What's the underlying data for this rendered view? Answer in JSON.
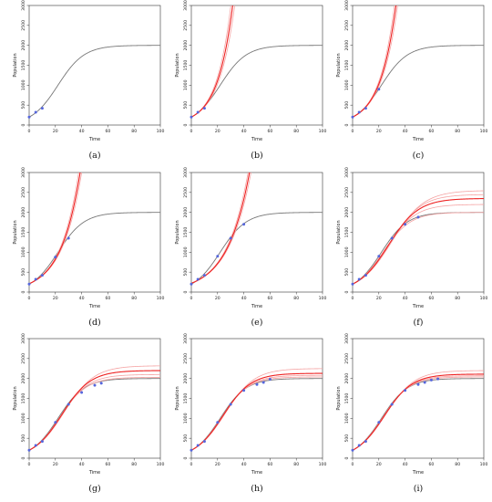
{
  "figure": {
    "captions": [
      "(a)",
      "(b)",
      "(c)",
      "(d)",
      "(e)",
      "(f)",
      "(g)",
      "(h)",
      "(i)"
    ]
  },
  "colors": {
    "true_curve": "#777777",
    "fit_curve": "#ee2222",
    "fit_band": "#f5a3a3",
    "observation": "#5566dd",
    "axis": "#333333"
  },
  "chart_data": [
    {
      "type": "line",
      "caption": "(a)",
      "xlabel": "Time",
      "ylabel": "Population",
      "xlim": [
        0,
        100
      ],
      "ylim": [
        0,
        3000
      ],
      "xticks": [
        0,
        20,
        40,
        60,
        80,
        100
      ],
      "yticks": [
        0,
        500,
        1000,
        1500,
        2000,
        2500,
        3000
      ],
      "true_curve": {
        "K": 2000,
        "P0": 200,
        "r": 0.1
      },
      "observations": {
        "x": [
          0,
          5,
          10
        ],
        "y": [
          200,
          320,
          420
        ]
      },
      "fits": []
    },
    {
      "type": "line",
      "caption": "(b)",
      "xlabel": "Time",
      "ylabel": "Population",
      "xlim": [
        0,
        100
      ],
      "ylim": [
        0,
        3000
      ],
      "xticks": [
        0,
        20,
        40,
        60,
        80,
        100
      ],
      "yticks": [
        0,
        500,
        1000,
        1500,
        2000,
        2500,
        3000
      ],
      "true_curve": {
        "K": 2000,
        "P0": 200,
        "r": 0.1
      },
      "observations": {
        "x": [
          0,
          5,
          10
        ],
        "y": [
          200,
          320,
          420
        ]
      },
      "fits": [
        {
          "role": "band",
          "K": 1000000,
          "P0": 200,
          "r": 0.082
        },
        {
          "role": "band",
          "K": 1000000,
          "P0": 200,
          "r": 0.09
        },
        {
          "role": "mean",
          "K": 1000000,
          "P0": 200,
          "r": 0.086
        }
      ]
    },
    {
      "type": "line",
      "caption": "(c)",
      "xlabel": "Time",
      "ylabel": "Population",
      "xlim": [
        0,
        100
      ],
      "ylim": [
        0,
        3000
      ],
      "xticks": [
        0,
        20,
        40,
        60,
        80,
        100
      ],
      "yticks": [
        0,
        500,
        1000,
        1500,
        2000,
        2500,
        3000
      ],
      "true_curve": {
        "K": 2000,
        "P0": 200,
        "r": 0.1
      },
      "observations": {
        "x": [
          0,
          5,
          10,
          20
        ],
        "y": [
          200,
          320,
          420,
          900
        ]
      },
      "fits": [
        {
          "role": "band",
          "K": 1000000,
          "P0": 200,
          "r": 0.079
        },
        {
          "role": "band",
          "K": 1000000,
          "P0": 200,
          "r": 0.085
        },
        {
          "role": "mean",
          "K": 1000000,
          "P0": 200,
          "r": 0.082
        }
      ]
    },
    {
      "type": "line",
      "caption": "(d)",
      "xlabel": "Time",
      "ylabel": "Population",
      "xlim": [
        0,
        100
      ],
      "ylim": [
        0,
        3000
      ],
      "xticks": [
        0,
        20,
        40,
        60,
        80,
        100
      ],
      "yticks": [
        0,
        500,
        1000,
        1500,
        2000,
        2500,
        3000
      ],
      "true_curve": {
        "K": 2000,
        "P0": 200,
        "r": 0.1
      },
      "observations": {
        "x": [
          0,
          5,
          10,
          20,
          30
        ],
        "y": [
          200,
          320,
          420,
          880,
          1350
        ]
      },
      "fits": [
        {
          "role": "band",
          "K": 1000000,
          "P0": 210,
          "r": 0.0665
        },
        {
          "role": "band",
          "K": 1000000,
          "P0": 210,
          "r": 0.0705
        },
        {
          "role": "mean",
          "K": 1000000,
          "P0": 210,
          "r": 0.0685
        }
      ]
    },
    {
      "type": "line",
      "caption": "(e)",
      "xlabel": "Time",
      "ylabel": "Population",
      "xlim": [
        0,
        100
      ],
      "ylim": [
        0,
        3000
      ],
      "xticks": [
        0,
        20,
        40,
        60,
        80,
        100
      ],
      "yticks": [
        0,
        500,
        1000,
        1500,
        2000,
        2500,
        3000
      ],
      "true_curve": {
        "K": 2000,
        "P0": 200,
        "r": 0.1
      },
      "observations": {
        "x": [
          0,
          5,
          10,
          20,
          30,
          40
        ],
        "y": [
          200,
          320,
          420,
          900,
          1350,
          1700
        ]
      },
      "fits": [
        {
          "role": "band",
          "K": 1000000,
          "P0": 220,
          "r": 0.0575
        },
        {
          "role": "band",
          "K": 1000000,
          "P0": 220,
          "r": 0.0605
        },
        {
          "role": "mean",
          "K": 1000000,
          "P0": 220,
          "r": 0.059
        }
      ]
    },
    {
      "type": "line",
      "caption": "(f)",
      "xlabel": "Time",
      "ylabel": "Population",
      "xlim": [
        0,
        100
      ],
      "ylim": [
        0,
        3000
      ],
      "xticks": [
        0,
        20,
        40,
        60,
        80,
        100
      ],
      "yticks": [
        0,
        500,
        1000,
        1500,
        2000,
        2500,
        3000
      ],
      "true_curve": {
        "K": 2000,
        "P0": 200,
        "r": 0.1
      },
      "observations": {
        "x": [
          0,
          5,
          10,
          20,
          30,
          40,
          50
        ],
        "y": [
          200,
          320,
          420,
          900,
          1350,
          1700,
          1880
        ]
      },
      "fits": [
        {
          "role": "band",
          "K": 2000,
          "P0": 200,
          "r": 0.095
        },
        {
          "role": "band",
          "K": 2550,
          "P0": 200,
          "r": 0.082
        },
        {
          "role": "band",
          "K": 2200,
          "P0": 200,
          "r": 0.09
        },
        {
          "role": "band",
          "K": 2450,
          "P0": 200,
          "r": 0.085
        },
        {
          "role": "mean",
          "K": 2350,
          "P0": 200,
          "r": 0.087
        }
      ]
    },
    {
      "type": "line",
      "caption": "(g)",
      "xlabel": "Time",
      "ylabel": "Population",
      "xlim": [
        0,
        100
      ],
      "ylim": [
        0,
        3000
      ],
      "xticks": [
        0,
        20,
        40,
        60,
        80,
        100
      ],
      "yticks": [
        0,
        500,
        1000,
        1500,
        2000,
        2500,
        3000
      ],
      "true_curve": {
        "K": 2000,
        "P0": 200,
        "r": 0.1
      },
      "observations": {
        "x": [
          0,
          5,
          10,
          20,
          30,
          40,
          50,
          55
        ],
        "y": [
          200,
          320,
          420,
          900,
          1350,
          1650,
          1830,
          1880
        ]
      },
      "fits": [
        {
          "role": "band",
          "K": 2030,
          "P0": 200,
          "r": 0.096
        },
        {
          "role": "band",
          "K": 2320,
          "P0": 200,
          "r": 0.088
        },
        {
          "role": "band",
          "K": 2100,
          "P0": 200,
          "r": 0.094
        },
        {
          "role": "mean",
          "K": 2200,
          "P0": 200,
          "r": 0.092
        }
      ]
    },
    {
      "type": "line",
      "caption": "(h)",
      "xlabel": "Time",
      "ylabel": "Population",
      "xlim": [
        0,
        100
      ],
      "ylim": [
        0,
        3000
      ],
      "xticks": [
        0,
        20,
        40,
        60,
        80,
        100
      ],
      "yticks": [
        0,
        500,
        1000,
        1500,
        2000,
        2500,
        3000
      ],
      "true_curve": {
        "K": 2000,
        "P0": 200,
        "r": 0.1
      },
      "observations": {
        "x": [
          0,
          5,
          10,
          20,
          30,
          40,
          50,
          55,
          60
        ],
        "y": [
          200,
          320,
          420,
          900,
          1350,
          1700,
          1850,
          1900,
          1980
        ]
      },
      "fits": [
        {
          "role": "band",
          "K": 2040,
          "P0": 200,
          "r": 0.097
        },
        {
          "role": "band",
          "K": 2250,
          "P0": 200,
          "r": 0.09
        },
        {
          "role": "band",
          "K": 2080,
          "P0": 200,
          "r": 0.095
        },
        {
          "role": "mean",
          "K": 2130,
          "P0": 200,
          "r": 0.094
        }
      ]
    },
    {
      "type": "line",
      "caption": "(i)",
      "xlabel": "Time",
      "ylabel": "Population",
      "xlim": [
        0,
        100
      ],
      "ylim": [
        0,
        3000
      ],
      "xticks": [
        0,
        20,
        40,
        60,
        80,
        100
      ],
      "yticks": [
        0,
        500,
        1000,
        1500,
        2000,
        2500,
        3000
      ],
      "true_curve": {
        "K": 2000,
        "P0": 200,
        "r": 0.1
      },
      "observations": {
        "x": [
          0,
          5,
          10,
          20,
          30,
          40,
          50,
          55,
          60,
          65
        ],
        "y": [
          200,
          320,
          420,
          900,
          1350,
          1700,
          1850,
          1900,
          1960,
          1990
        ]
      },
      "fits": [
        {
          "role": "band",
          "K": 2040,
          "P0": 200,
          "r": 0.097
        },
        {
          "role": "band",
          "K": 2200,
          "P0": 200,
          "r": 0.091
        },
        {
          "role": "band",
          "K": 2070,
          "P0": 200,
          "r": 0.096
        },
        {
          "role": "mean",
          "K": 2110,
          "P0": 200,
          "r": 0.094
        }
      ]
    }
  ]
}
